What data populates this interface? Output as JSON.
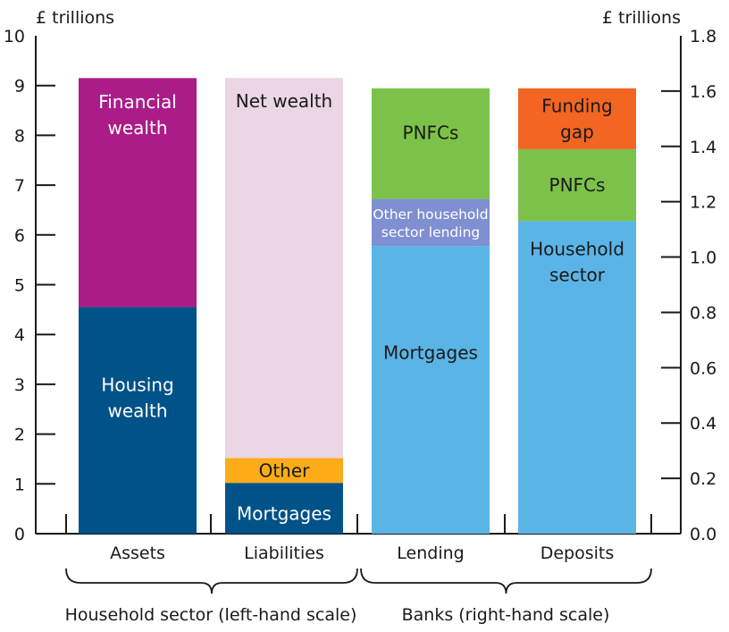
{
  "chart_data": {
    "type": "bar",
    "stacked": true,
    "left_axis": {
      "unit_label": "£ trillions",
      "min": 0,
      "max": 10,
      "ticks": [
        "0",
        "1",
        "2",
        "3",
        "4",
        "5",
        "6",
        "7",
        "8",
        "9",
        "10"
      ]
    },
    "right_axis": {
      "unit_label": "£ trillions",
      "min": 0,
      "max": 1.8,
      "ticks": [
        "0.0",
        "0.2",
        "0.4",
        "0.6",
        "0.8",
        "1.0",
        "1.2",
        "1.4",
        "1.6",
        "1.8"
      ]
    },
    "categories": [
      "Assets",
      "Liabilities",
      "Lending",
      "Deposits"
    ],
    "groups": [
      {
        "label": "Household sector (left-hand scale)",
        "categories": [
          "Assets",
          "Liabilities"
        ],
        "axis": "left"
      },
      {
        "label": "Banks (right-hand scale)",
        "categories": [
          "Lending",
          "Deposits"
        ],
        "axis": "right"
      }
    ],
    "bars": [
      {
        "category": "Assets",
        "axis": "left",
        "segments": [
          {
            "name": "Housing wealth",
            "lines": [
              "Housing",
              "wealth"
            ],
            "value": 4.55,
            "color": "#005288",
            "text_color": "#ffffff"
          },
          {
            "name": "Financial wealth",
            "lines": [
              "Financial",
              "wealth"
            ],
            "value": 4.6,
            "color": "#ab1c88",
            "text_color": "#ffffff"
          }
        ]
      },
      {
        "category": "Liabilities",
        "axis": "left",
        "segments": [
          {
            "name": "Mortgages",
            "lines": [
              "Mortgages"
            ],
            "value": 1.02,
            "color": "#005288",
            "text_color": "#ffffff"
          },
          {
            "name": "Other",
            "lines": [
              "Other"
            ],
            "value": 0.5,
            "color": "#fbac18",
            "text_color": "#1a1a1a"
          },
          {
            "name": "Net wealth",
            "lines": [
              "Net wealth"
            ],
            "value": 7.63,
            "color": "#ead6e5",
            "text_color": "#1a1a1a"
          }
        ]
      },
      {
        "category": "Lending",
        "axis": "right",
        "segments": [
          {
            "name": "Mortgages",
            "lines": [
              "Mortgages"
            ],
            "value": 1.04,
            "color": "#5bb4e6",
            "text_color": "#1a1a1a"
          },
          {
            "name": "Other household sector lending",
            "lines": [
              "Other household",
              "sector lending"
            ],
            "value": 0.17,
            "color": "#7f8fd1",
            "text_color": "#ffffff",
            "small": true
          },
          {
            "name": "PNFCs",
            "lines": [
              "PNFCs"
            ],
            "value": 0.4,
            "color": "#7cc24a",
            "text_color": "#1a1a1a"
          }
        ]
      },
      {
        "category": "Deposits",
        "axis": "right",
        "segments": [
          {
            "name": "Household sector",
            "lines": [
              "Household",
              "sector"
            ],
            "value": 1.13,
            "color": "#5bb4e6",
            "text_color": "#1a1a1a"
          },
          {
            "name": "PNFCs",
            "lines": [
              "PNFCs"
            ],
            "value": 0.26,
            "color": "#7cc24a",
            "text_color": "#1a1a1a"
          },
          {
            "name": "Funding gap",
            "lines": [
              "Funding",
              "gap"
            ],
            "value": 0.22,
            "color": "#f26522",
            "text_color": "#1a1a1a"
          }
        ]
      }
    ]
  }
}
